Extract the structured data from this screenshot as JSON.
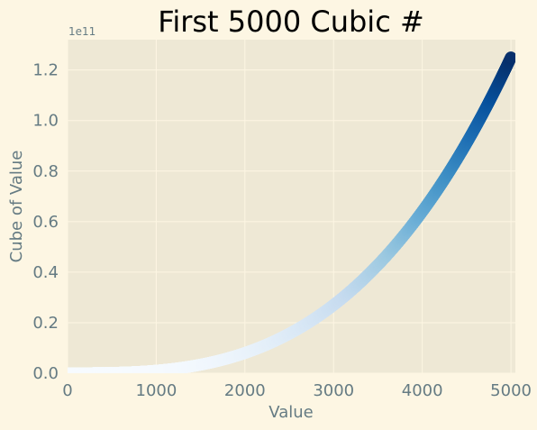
{
  "chart_data": {
    "type": "scatter",
    "title": "First 5000 Cubic #",
    "xlabel": "Value",
    "ylabel": "Cube of Value",
    "x_range": [
      1,
      5000
    ],
    "y_formula": "x^3",
    "xlim": [
      0,
      5050
    ],
    "ylim": [
      0,
      132000000000
    ],
    "x_ticks": [
      0,
      1000,
      2000,
      3000,
      4000,
      5000
    ],
    "x_tick_labels": [
      "0",
      "1000",
      "2000",
      "3000",
      "4000",
      "5000"
    ],
    "y_ticks": [
      0,
      20000000000,
      40000000000,
      60000000000,
      80000000000,
      100000000000,
      120000000000
    ],
    "y_tick_labels": [
      "0.0",
      "0.2",
      "0.4",
      "0.6",
      "0.8",
      "1.0",
      "1.2"
    ],
    "y_offset_text": "1e11",
    "colormap": "Blues",
    "grid": true,
    "style": {
      "background": "#fdf6e3",
      "plot_background": "#eee8d5",
      "grid_color": "#fdf6e3",
      "text_color": "#657b83"
    }
  }
}
